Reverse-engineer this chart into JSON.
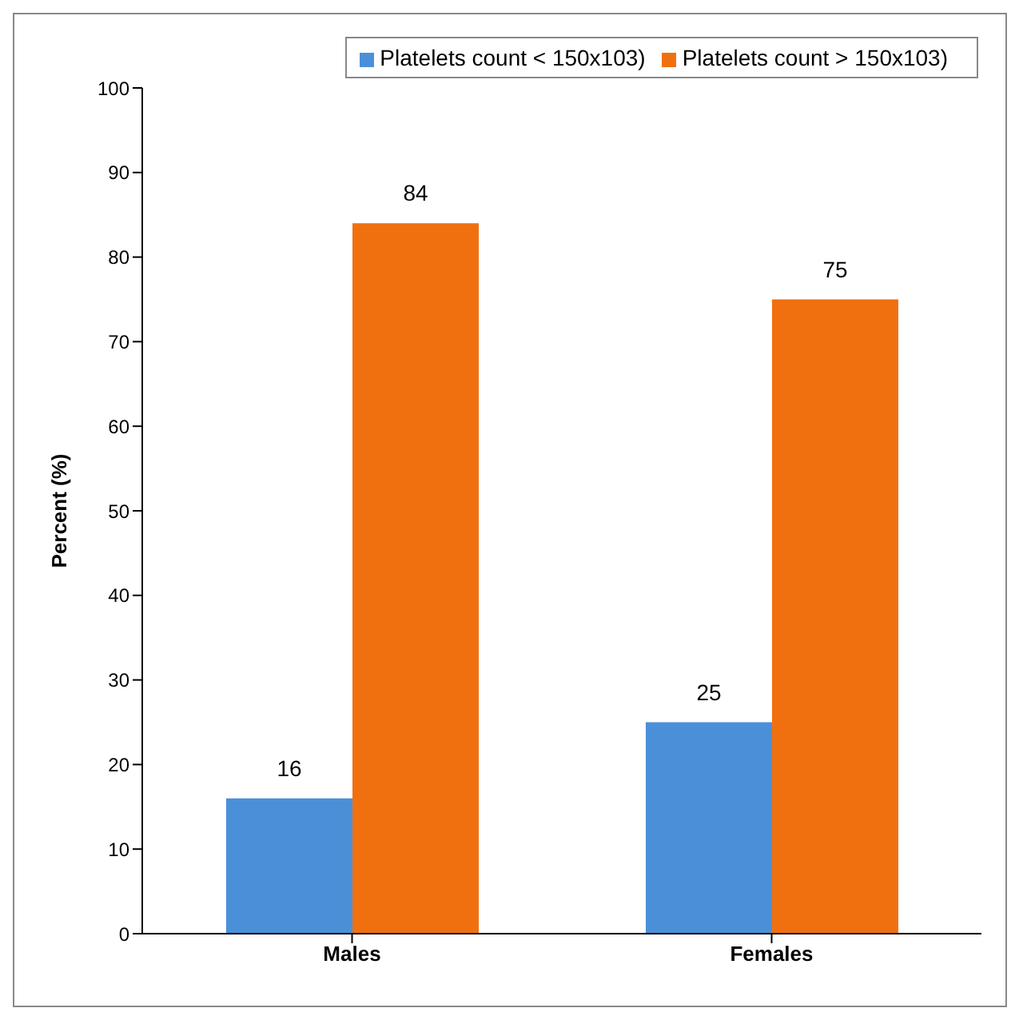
{
  "chart_data": {
    "type": "bar",
    "ylabel": "Percent (%)",
    "categories": [
      "Males",
      "Females"
    ],
    "series": [
      {
        "name": "Platelets  count < 150x103)",
        "color": "#4a90d9",
        "values": [
          16,
          25
        ]
      },
      {
        "name": "Platelets  count > 150x103)",
        "color": "#f07010",
        "values": [
          84,
          75
        ]
      }
    ],
    "ylim": [
      0,
      100
    ],
    "yticks": [
      0,
      10,
      20,
      30,
      40,
      50,
      60,
      70,
      80,
      90,
      100
    ],
    "data_labels": true,
    "legend": "top right",
    "grid": false
  }
}
